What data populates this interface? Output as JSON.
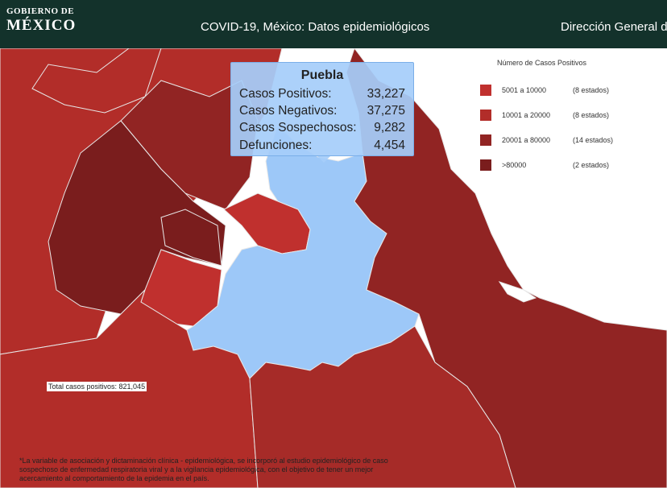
{
  "header": {
    "brand_line1": "GOBIERNO DE",
    "brand_line2": "MÉXICO",
    "title": "COVID-19, México: Datos epidemiológicos",
    "nav_link": "Dirección General de"
  },
  "legend": {
    "title": "Número de Casos Positivos",
    "items": [
      {
        "range": "5001 a  10000",
        "count": "(8 estados)",
        "color": "#c0302e"
      },
      {
        "range": "10001 a  20000",
        "count": "(8 estados)",
        "color": "#b22d29"
      },
      {
        "range": "20001 a  80000",
        "count": "(14 estados)",
        "color": "#912423"
      },
      {
        "range": ">80000",
        "count": "(2 estados)",
        "color": "#7a1d1d"
      }
    ]
  },
  "tooltip": {
    "state": "Puebla",
    "rows": [
      {
        "label": "Casos Positivos:",
        "value": "33,227"
      },
      {
        "label": "Casos Negativos:",
        "value": "37,275"
      },
      {
        "label": "Casos Sospechosos:",
        "value": "9,282"
      },
      {
        "label": "Defunciones:",
        "value": "4,454"
      }
    ]
  },
  "total": "Total casos positivos: 821,045",
  "footnote": "*La variable de asociación y dictaminación clínica - epidemiológica, se incorporó al estudio epidemiológico de caso sospechoso de enfermedad respiratoria viral y a la vigilancia epidemiológica, con el objetivo de tener un mejor acercamiento al comportamiento de la epidemia en el país.",
  "colors": {
    "header_bg": "#13322b",
    "highlight": "#9dc8f8",
    "sea": "#ffffff",
    "class_5001_10000": "#c0302e",
    "class_10001_20000": "#b22d29",
    "class_20001_80000": "#912423",
    "class_over_80000": "#7a1d1d"
  }
}
